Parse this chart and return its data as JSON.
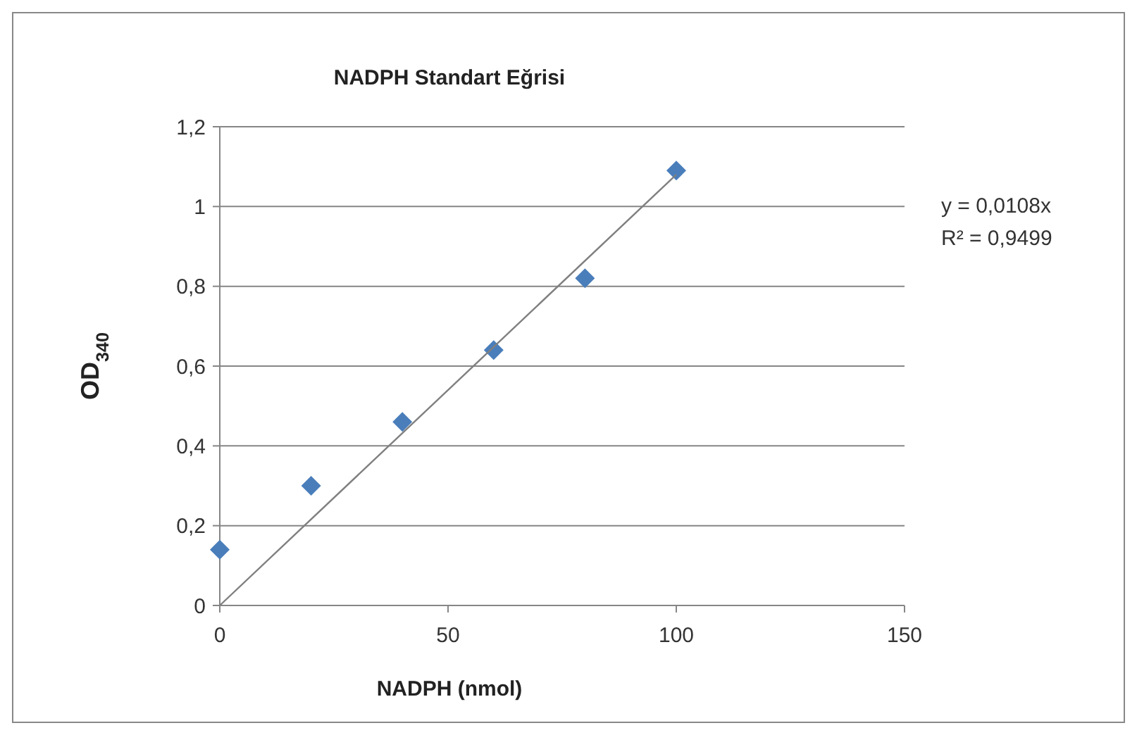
{
  "chart_data": {
    "type": "scatter",
    "title": "NADPH Standart Eğrisi",
    "xlabel": "NADPH (nmol)",
    "ylabel": "OD$_{340}$",
    "xlim": [
      0,
      150
    ],
    "xticks": [
      0,
      50,
      100,
      150
    ],
    "ylim": [
      0,
      1.2
    ],
    "yticks": [
      0,
      {
        "value": 0.2,
        "label": "0,2"
      },
      {
        "value": 0.4,
        "label": "0,4"
      },
      {
        "value": 0.6,
        "label": "0,6"
      },
      {
        "value": 0.8,
        "label": "0,8"
      },
      1,
      {
        "value": 1.2,
        "label": "1,2"
      }
    ],
    "grid": "y",
    "series": [
      {
        "color": "#4a7ebb",
        "marker": "diamond",
        "x": [
          0,
          20,
          40,
          60,
          80,
          100
        ],
        "values": [
          0.14,
          0.3,
          0.46,
          0.64,
          0.82,
          1.09
        ]
      },
      {
        "type": "line",
        "color": "#7f7f7f",
        "marker": "none",
        "line_style": "solid",
        "x": [
          0,
          100
        ],
        "values": [
          0,
          1.08
        ]
      }
    ],
    "annotations": [
      "y = 0,0108x",
      "R² = 0,9499"
    ]
  }
}
